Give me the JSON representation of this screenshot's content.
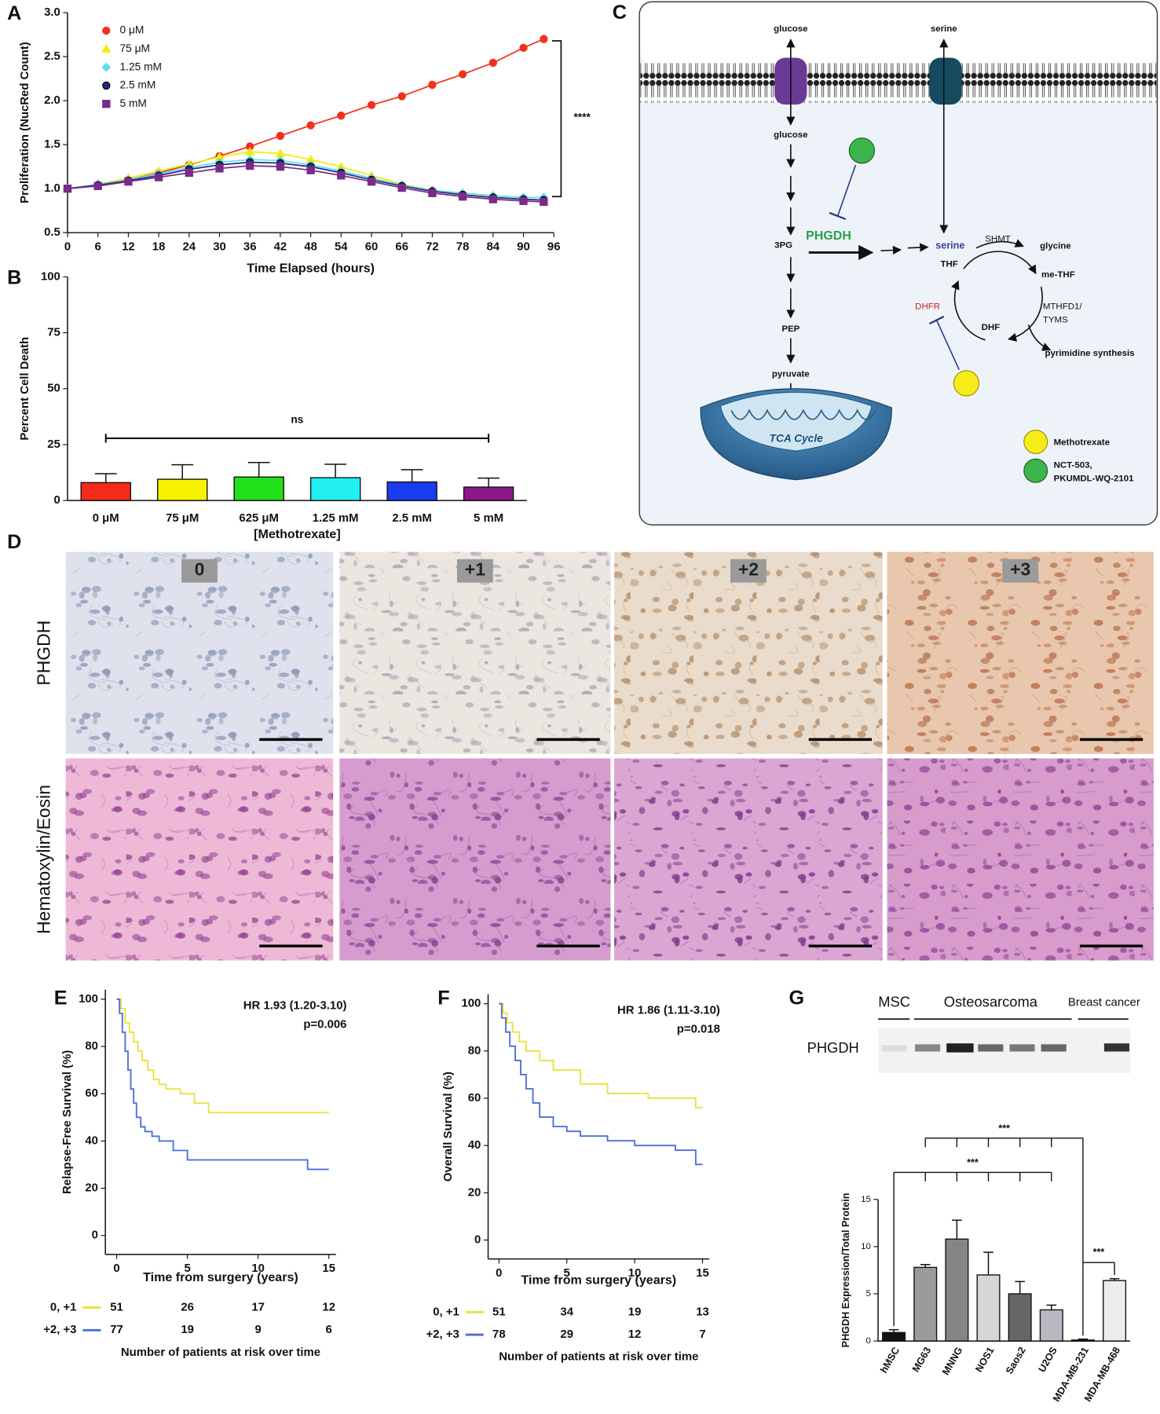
{
  "chart_data": [
    {
      "type": "line",
      "label": "A",
      "ylabel": "Proliferation (NucRed Count)",
      "xlabel": "Time Elapsed (hours)",
      "annotation": "****",
      "x": [
        0,
        6,
        12,
        18,
        24,
        30,
        36,
        42,
        48,
        54,
        60,
        66,
        72,
        78,
        84,
        90,
        94
      ],
      "series": [
        {
          "name": "0 μM",
          "color": "#f2301c",
          "marker": "circle",
          "values": [
            1.0,
            1.04,
            1.1,
            1.18,
            1.27,
            1.37,
            1.48,
            1.6,
            1.72,
            1.83,
            1.95,
            2.05,
            2.18,
            2.3,
            2.43,
            2.6,
            2.7
          ]
        },
        {
          "name": "75 μM",
          "color": "#f3ea10",
          "marker": "triangle",
          "values": [
            1.0,
            1.05,
            1.12,
            1.2,
            1.28,
            1.36,
            1.42,
            1.4,
            1.33,
            1.25,
            1.15,
            1.05,
            0.98,
            0.93,
            0.9,
            0.88,
            0.87
          ]
        },
        {
          "name": "1.25 mM",
          "color": "#5ce0e8",
          "marker": "diamond",
          "values": [
            1.0,
            1.05,
            1.1,
            1.17,
            1.24,
            1.3,
            1.33,
            1.32,
            1.27,
            1.2,
            1.12,
            1.04,
            0.98,
            0.95,
            0.92,
            0.9,
            0.9
          ]
        },
        {
          "name": "2.5 mM",
          "color": "#1f2e80",
          "marker": "circle",
          "values": [
            1.0,
            1.04,
            1.09,
            1.15,
            1.22,
            1.27,
            1.3,
            1.29,
            1.25,
            1.18,
            1.1,
            1.03,
            0.97,
            0.93,
            0.9,
            0.88,
            0.87
          ]
        },
        {
          "name": "5 mM",
          "color": "#7a2a8a",
          "marker": "square",
          "values": [
            1.0,
            1.03,
            1.08,
            1.13,
            1.18,
            1.23,
            1.26,
            1.25,
            1.21,
            1.15,
            1.08,
            1.01,
            0.95,
            0.91,
            0.88,
            0.86,
            0.85
          ]
        }
      ],
      "xlim": [
        0,
        96
      ],
      "ylim": [
        0.5,
        3.0
      ],
      "xticks": [
        0,
        6,
        12,
        18,
        24,
        30,
        36,
        42,
        48,
        54,
        60,
        66,
        72,
        78,
        84,
        90,
        96
      ],
      "yticks": [
        0.5,
        {
          "value": 1,
          "label": "1.0"
        },
        1.5,
        {
          "value": 2,
          "label": "2.0"
        },
        2.5,
        {
          "value": 3,
          "label": "3.0"
        }
      ]
    },
    {
      "type": "bar",
      "label": "B",
      "ylabel": "Percent Cell Death",
      "xlabel": "[Methotrexate]",
      "annotation": "ns",
      "categories": [
        "0 μM",
        "75 μM",
        "625 μM",
        "1.25 mM",
        "2.5 mM",
        "5 mM"
      ],
      "values": [
        8,
        9.5,
        10.5,
        10.2,
        8.3,
        6
      ],
      "errors": [
        4,
        6.5,
        6.5,
        6,
        5.5,
        4
      ],
      "colors": [
        "#f52a1a",
        "#f7f200",
        "#22e01a",
        "#22f0f0",
        "#1a3cf0",
        "#8a1a8a"
      ],
      "ylim": [
        0,
        100
      ],
      "yticks": [
        0,
        25,
        50,
        75,
        100
      ]
    },
    {
      "type": "step",
      "label": "E",
      "ylabel": "Relapse-Free Survival (%)",
      "xlabel": "Time from surgery (years)",
      "annotations": [
        "HR 1.93 (1.20-3.10)",
        "p=0.006"
      ],
      "risk_title": "Number of patients at risk over time",
      "xlim": [
        -0.8,
        15.5
      ],
      "ylim": [
        -8,
        104
      ],
      "xticks": [
        0,
        5,
        10,
        15
      ],
      "yticks": [
        0,
        20,
        40,
        60,
        80,
        100
      ],
      "series": [
        {
          "name": "0, +1",
          "color": "#e8e23a",
          "x": [
            0,
            0.3,
            0.6,
            0.9,
            1.2,
            1.5,
            1.8,
            2.2,
            2.6,
            3.0,
            3.5,
            4.5,
            5.5,
            6.5,
            15
          ],
          "values": [
            100,
            96,
            90,
            86,
            82,
            78,
            74,
            70,
            66,
            64,
            62,
            60,
            56,
            52,
            52
          ],
          "at_risk": [
            51,
            26,
            17,
            12
          ]
        },
        {
          "name": "+2, +3",
          "color": "#4a6fd8",
          "x": [
            0,
            0.2,
            0.4,
            0.6,
            0.8,
            1.0,
            1.2,
            1.4,
            1.7,
            2.0,
            2.5,
            3.0,
            4.0,
            5.0,
            13.5,
            15
          ],
          "values": [
            100,
            94,
            86,
            78,
            70,
            62,
            56,
            50,
            46,
            44,
            42,
            40,
            36,
            32,
            28,
            28
          ],
          "at_risk": [
            77,
            19,
            9,
            6
          ]
        }
      ]
    },
    {
      "type": "step",
      "label": "F",
      "ylabel": "Overall Survival (%)",
      "xlabel": "Time from surgery (years)",
      "annotations": [
        "HR 1.86 (1.11-3.10)",
        "p=0.018"
      ],
      "risk_title": "Number of patients at risk over time",
      "xlim": [
        -0.8,
        15.5
      ],
      "ylim": [
        -8,
        104
      ],
      "xticks": [
        0,
        5,
        10,
        15
      ],
      "yticks": [
        0,
        20,
        40,
        60,
        80,
        100
      ],
      "series": [
        {
          "name": "0, +1",
          "color": "#e8e23a",
          "x": [
            0,
            0.3,
            0.6,
            1,
            1.5,
            2,
            3,
            4,
            6,
            8,
            11,
            14.5,
            15
          ],
          "values": [
            100,
            96,
            92,
            88,
            84,
            80,
            76,
            72,
            66,
            62,
            60,
            56,
            56
          ],
          "at_risk": [
            51,
            34,
            19,
            13
          ]
        },
        {
          "name": "+2, +3",
          "color": "#4a6fd8",
          "x": [
            0,
            0.2,
            0.5,
            0.8,
            1.2,
            1.6,
            2,
            2.5,
            3,
            4,
            5,
            6,
            8,
            10,
            13,
            14.5,
            15
          ],
          "values": [
            100,
            94,
            88,
            82,
            76,
            70,
            64,
            58,
            52,
            48,
            46,
            44,
            42,
            40,
            38,
            32,
            32
          ],
          "at_risk": [
            78,
            29,
            12,
            7
          ]
        }
      ]
    },
    {
      "type": "bar",
      "label": "G",
      "ylabel": "PHGDH Expression/Total Protein",
      "annotations": [
        "***",
        "***",
        "***"
      ],
      "blot": {
        "label": "PHGDH",
        "groups": [
          "MSC",
          "Osteosarcoma",
          "Breast cancer"
        ]
      },
      "categories": [
        "hMSC",
        "MG63",
        "MNNG",
        "NOS1",
        "Saos2",
        "U2OS",
        "MDA-MB-231",
        "MDA-MB-468"
      ],
      "values": [
        0.9,
        7.8,
        10.8,
        7.0,
        5.0,
        3.3,
        0.1,
        6.4
      ],
      "errors": [
        0.3,
        0.3,
        2.0,
        2.4,
        1.3,
        0.5,
        0.1,
        0.2
      ],
      "colors": [
        "#111111",
        "#9a9a9a",
        "#858585",
        "#d6d6d6",
        "#666666",
        "#b8b8c0",
        "#555555",
        "#ececec"
      ],
      "ylim": [
        0,
        15
      ],
      "yticks": [
        0,
        5,
        10,
        15
      ]
    }
  ],
  "pathway": {
    "label": "C",
    "texts": {
      "glucose_out": "glucose",
      "serine_out": "serine",
      "glucose_in": "glucose",
      "pg3": "3PG",
      "phgdh": "PHGDH",
      "serine_in": "serine",
      "shmt": "SHMT",
      "glycine": "glycine",
      "thf": "THF",
      "me_thf": "me-THF",
      "mthfd1": "MTHFD1/",
      "tyms": "TYMS",
      "dhf": "DHF",
      "dhfr": "DHFR",
      "pyrimidine": "pyrimidine synthesis",
      "pep": "PEP",
      "pyruvate": "pyruvate",
      "tca": "TCA Cycle"
    },
    "legend": [
      "Methotrexate",
      "NCT-503,",
      "PKUMDL-WQ-2101"
    ]
  },
  "histology": {
    "label": "D",
    "rows": [
      "PHGDH",
      "Hematoxylin/Eosin"
    ],
    "scores": [
      "0",
      "+1",
      "+2",
      "+3"
    ]
  }
}
